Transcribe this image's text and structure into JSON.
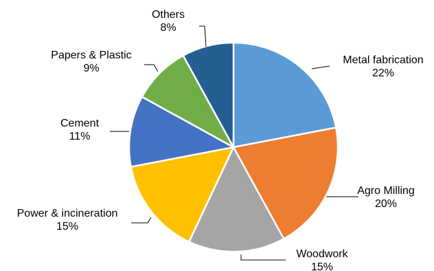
{
  "chart_data": {
    "type": "pie",
    "title": "",
    "start_angle_deg": 0,
    "direction": "clockwise",
    "legend": "none",
    "slices": [
      {
        "label": "Metal fabrication",
        "value": 22,
        "value_label": "22%",
        "color": "#5B9BD5"
      },
      {
        "label": "Agro Milling",
        "value": 20,
        "value_label": "20%",
        "color": "#ED7D31"
      },
      {
        "label": "Woodwork",
        "value": 15,
        "value_label": "15%",
        "color": "#A5A5A5"
      },
      {
        "label": "Power & incineration",
        "value": 15,
        "value_label": "15%",
        "color": "#FFC000"
      },
      {
        "label": "Cement",
        "value": 11,
        "value_label": "11%",
        "color": "#4472C4"
      },
      {
        "label": "Papers & Plastic",
        "value": 9,
        "value_label": "9%",
        "color": "#70AD47"
      },
      {
        "label": "Others",
        "value": 8,
        "value_label": "8%",
        "color": "#255E91"
      }
    ]
  }
}
